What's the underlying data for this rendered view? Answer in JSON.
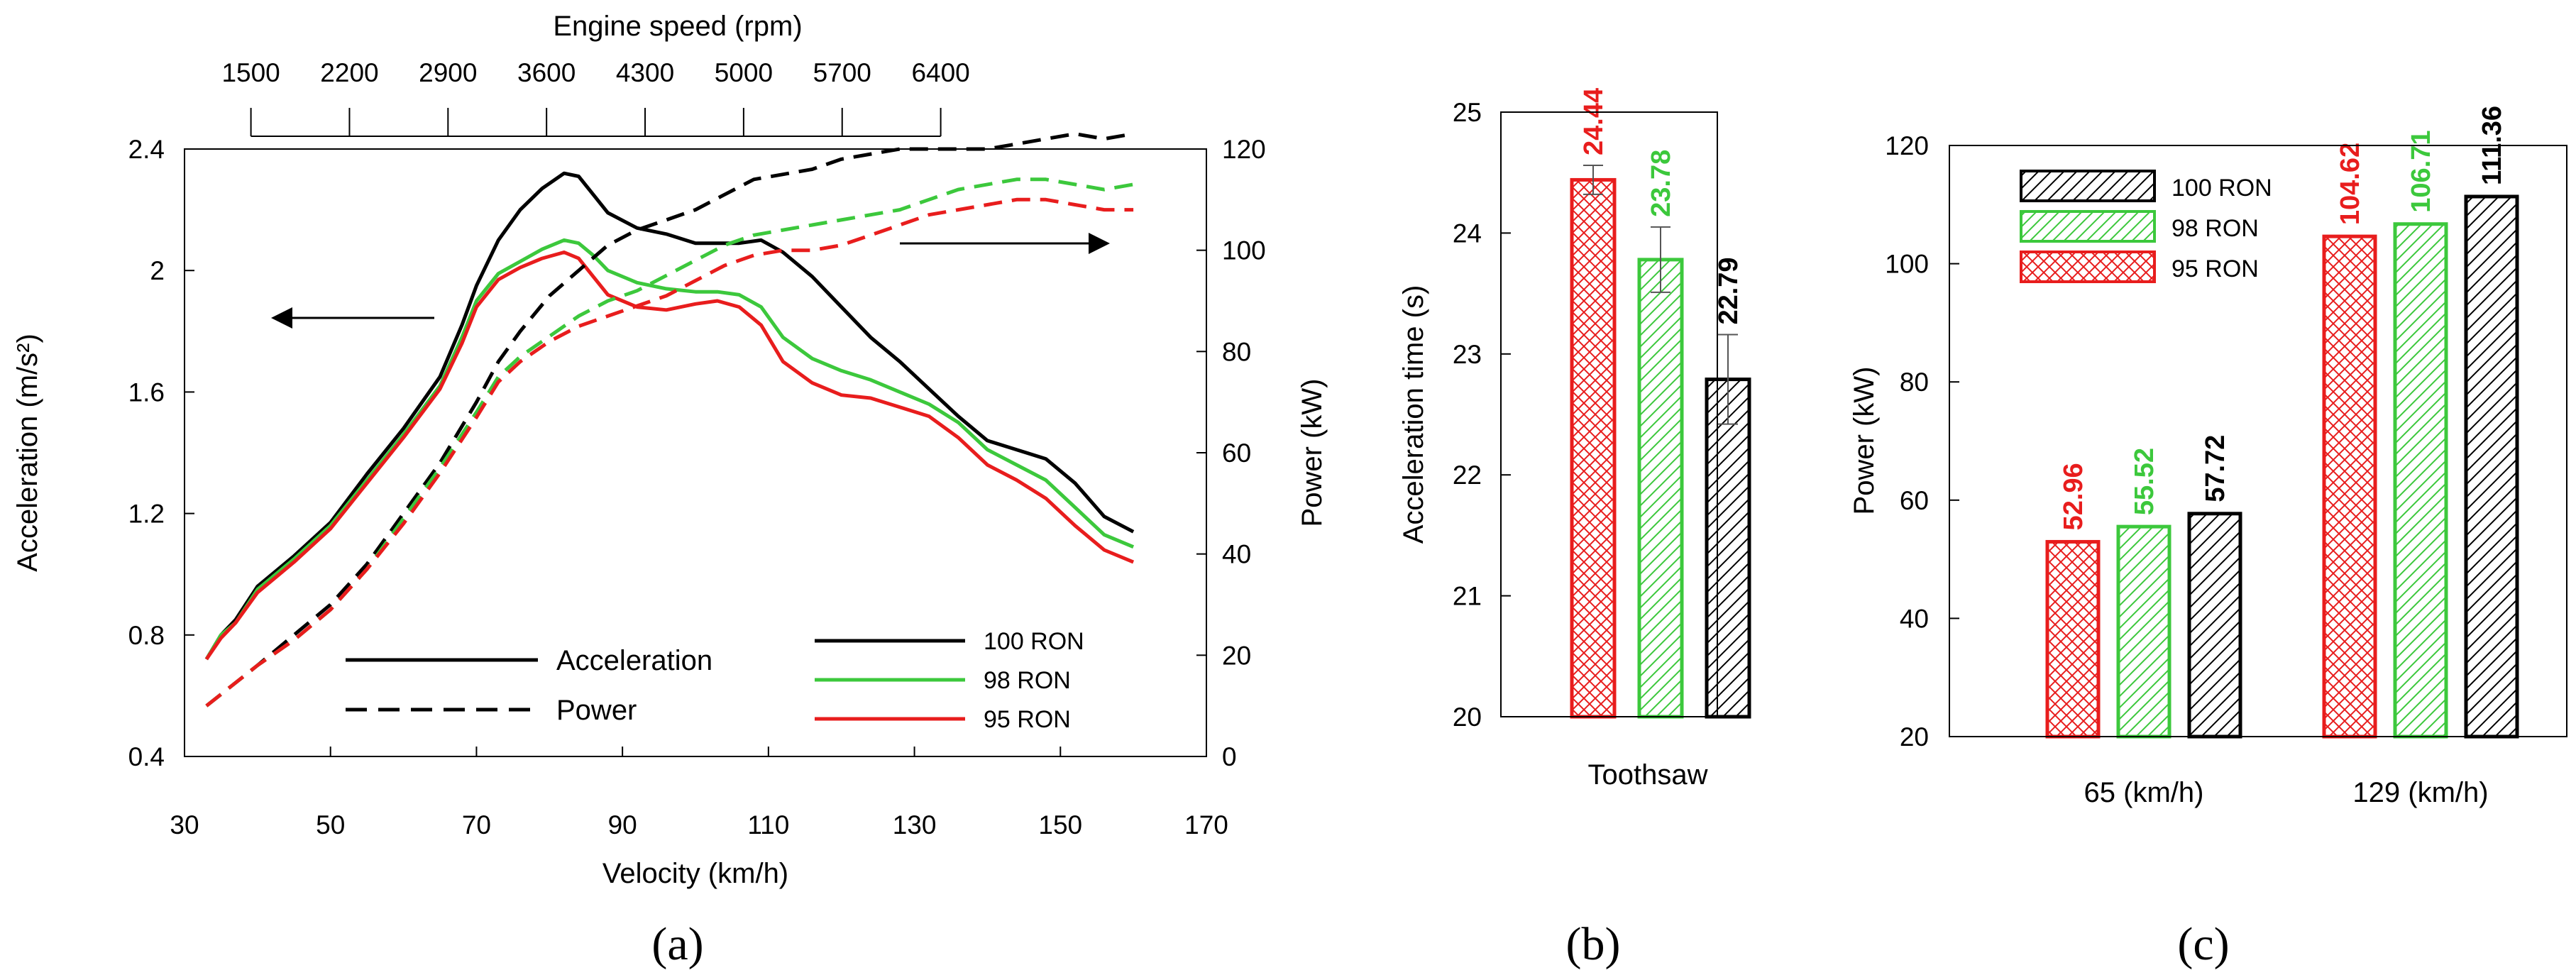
{
  "chart_data": [
    {
      "panel": "(a)",
      "type": "line",
      "xlabel": "Velocity (km/h)",
      "x2label": "Engine speed (rpm)",
      "ylabel": "Acceleration (m/s²)",
      "y2label": "Power (kW)",
      "xlim": [
        30,
        170
      ],
      "ylim": [
        0.4,
        2.4
      ],
      "y2lim": [
        0,
        120
      ],
      "xticks": [
        "30",
        "50",
        "70",
        "90",
        "110",
        "130",
        "150",
        "170"
      ],
      "x2ticks": [
        "1500",
        "2200",
        "2900",
        "3600",
        "4300",
        "5000",
        "5700",
        "6400"
      ],
      "x2tick_velocity": [
        39.1,
        52.6,
        66.1,
        79.6,
        93.1,
        106.6,
        120.1,
        133.6
      ],
      "yticks": [
        "0.4",
        "0.8",
        "1.2",
        "1.6",
        "2",
        "2.4"
      ],
      "y2ticks": [
        "0",
        "20",
        "40",
        "60",
        "80",
        "100",
        "120"
      ],
      "style_legend": [
        {
          "label": "Acceleration",
          "dash": "solid"
        },
        {
          "label": "Power",
          "dash": "dashed"
        }
      ],
      "series": [
        {
          "name": "100 RON",
          "color": "#000000",
          "kind": "acceleration",
          "x": [
            33,
            35,
            37,
            40,
            45,
            50,
            55,
            60,
            65,
            68,
            70,
            73,
            76,
            79,
            82,
            84,
            86,
            88,
            92,
            96,
            100,
            103,
            106,
            109,
            112,
            116,
            120,
            124,
            128,
            132,
            136,
            140,
            144,
            148,
            152,
            156,
            160
          ],
          "y": [
            0.72,
            0.8,
            0.85,
            0.96,
            1.06,
            1.17,
            1.33,
            1.48,
            1.65,
            1.82,
            1.95,
            2.1,
            2.2,
            2.27,
            2.32,
            2.31,
            2.25,
            2.19,
            2.14,
            2.12,
            2.09,
            2.09,
            2.09,
            2.1,
            2.06,
            1.98,
            1.88,
            1.78,
            1.7,
            1.61,
            1.52,
            1.44,
            1.41,
            1.38,
            1.3,
            1.19,
            1.14
          ]
        },
        {
          "name": "98 RON",
          "color": "#3cc83c",
          "kind": "acceleration",
          "x": [
            33,
            35,
            37,
            40,
            45,
            50,
            55,
            60,
            65,
            68,
            70,
            73,
            76,
            79,
            82,
            84,
            86,
            88,
            92,
            96,
            100,
            103,
            106,
            109,
            112,
            116,
            120,
            124,
            128,
            132,
            136,
            140,
            144,
            148,
            152,
            156,
            160
          ],
          "y": [
            0.72,
            0.8,
            0.84,
            0.95,
            1.05,
            1.16,
            1.31,
            1.46,
            1.62,
            1.78,
            1.9,
            1.99,
            2.03,
            2.07,
            2.1,
            2.09,
            2.05,
            2.0,
            1.96,
            1.94,
            1.93,
            1.93,
            1.92,
            1.88,
            1.78,
            1.71,
            1.67,
            1.64,
            1.6,
            1.56,
            1.5,
            1.41,
            1.36,
            1.31,
            1.22,
            1.13,
            1.09
          ]
        },
        {
          "name": "95 RON",
          "color": "#e81d1d",
          "kind": "acceleration",
          "x": [
            33,
            35,
            37,
            40,
            45,
            50,
            55,
            60,
            65,
            68,
            70,
            73,
            76,
            79,
            82,
            84,
            86,
            88,
            92,
            96,
            100,
            103,
            106,
            109,
            112,
            116,
            120,
            124,
            128,
            132,
            136,
            140,
            144,
            148,
            152,
            156,
            160
          ],
          "y": [
            0.72,
            0.79,
            0.84,
            0.94,
            1.04,
            1.15,
            1.3,
            1.45,
            1.61,
            1.76,
            1.88,
            1.97,
            2.01,
            2.04,
            2.06,
            2.04,
            1.98,
            1.92,
            1.88,
            1.87,
            1.89,
            1.9,
            1.88,
            1.82,
            1.7,
            1.63,
            1.59,
            1.58,
            1.55,
            1.52,
            1.45,
            1.36,
            1.31,
            1.25,
            1.16,
            1.08,
            1.04
          ]
        },
        {
          "name": "100 RON",
          "color": "#000000",
          "kind": "power",
          "x": [
            33,
            40,
            45,
            50,
            55,
            60,
            65,
            70,
            73,
            76,
            80,
            84,
            88,
            92,
            96,
            100,
            104,
            108,
            112,
            116,
            120,
            124,
            128,
            132,
            136,
            140,
            144,
            148,
            152,
            156,
            160
          ],
          "y": [
            10,
            18,
            24,
            30,
            38,
            48,
            58,
            70,
            78,
            84,
            91,
            96,
            101,
            104,
            106,
            108,
            111,
            114,
            115,
            116,
            118,
            119,
            120,
            120,
            120,
            120,
            121,
            122,
            123,
            122,
            123
          ]
        },
        {
          "name": "98 RON",
          "color": "#3cc83c",
          "kind": "power",
          "x": [
            33,
            40,
            45,
            50,
            55,
            60,
            65,
            70,
            73,
            76,
            80,
            84,
            88,
            92,
            96,
            100,
            104,
            108,
            112,
            116,
            120,
            124,
            128,
            132,
            136,
            140,
            144,
            148,
            152,
            156,
            160
          ],
          "y": [
            10,
            18,
            23,
            29,
            37,
            47,
            57,
            68,
            75,
            79,
            83,
            87,
            90,
            92,
            95,
            98,
            101,
            103,
            104,
            105,
            106,
            107,
            108,
            110,
            112,
            113,
            114,
            114,
            113,
            112,
            113
          ]
        },
        {
          "name": "95 RON",
          "color": "#e81d1d",
          "kind": "power",
          "x": [
            33,
            40,
            45,
            50,
            55,
            60,
            65,
            70,
            73,
            76,
            80,
            84,
            88,
            92,
            96,
            100,
            104,
            108,
            112,
            116,
            120,
            124,
            128,
            132,
            136,
            140,
            144,
            148,
            152,
            156,
            160
          ],
          "y": [
            10,
            18,
            23,
            29,
            37,
            46,
            56,
            67,
            74,
            78,
            82,
            85,
            87,
            89,
            91,
            94,
            97,
            99,
            100,
            100,
            101,
            103,
            105,
            107,
            108,
            109,
            110,
            110,
            109,
            108,
            108
          ]
        }
      ],
      "legend": [
        {
          "label": "100 RON",
          "color": "#000000"
        },
        {
          "label": "98 RON",
          "color": "#3cc83c"
        },
        {
          "label": "95 RON",
          "color": "#e81d1d"
        }
      ]
    },
    {
      "panel": "(b)",
      "type": "bar",
      "ylabel": "Acceleration time (s)",
      "xlabel": "Toothsaw",
      "ylim": [
        20,
        25
      ],
      "yticks": [
        "20",
        "21",
        "22",
        "23",
        "24",
        "25"
      ],
      "series": [
        {
          "name": "95 RON",
          "color": "#e81d1d",
          "value": 24.44,
          "label": "24.44",
          "error": 0.12
        },
        {
          "name": "98 RON",
          "color": "#3cc83c",
          "value": 23.78,
          "label": "23.78",
          "error": 0.27
        },
        {
          "name": "100 RON",
          "color": "#000000",
          "value": 22.79,
          "label": "22.79",
          "error": 0.37
        }
      ]
    },
    {
      "panel": "(c)",
      "type": "bar",
      "ylabel": "Power (kW)",
      "ylim": [
        20,
        120
      ],
      "yticks": [
        "20",
        "40",
        "60",
        "80",
        "100",
        "120"
      ],
      "categories": [
        "65 (km/h)",
        "129 (km/h)"
      ],
      "series": [
        {
          "name": "95 RON",
          "color": "#e81d1d",
          "values": [
            52.96,
            104.62
          ],
          "labels": [
            "52.96",
            "104.62"
          ]
        },
        {
          "name": "98 RON",
          "color": "#3cc83c",
          "values": [
            55.52,
            106.71
          ],
          "labels": [
            "55.52",
            "106.71"
          ]
        },
        {
          "name": "100 RON",
          "color": "#000000",
          "values": [
            57.72,
            111.36
          ],
          "labels": [
            "57.72",
            "111.36"
          ]
        }
      ],
      "legend": [
        {
          "label": "100 RON",
          "color": "#000000"
        },
        {
          "label": "98 RON",
          "color": "#3cc83c"
        },
        {
          "label": "95 RON",
          "color": "#e81d1d"
        }
      ]
    }
  ]
}
